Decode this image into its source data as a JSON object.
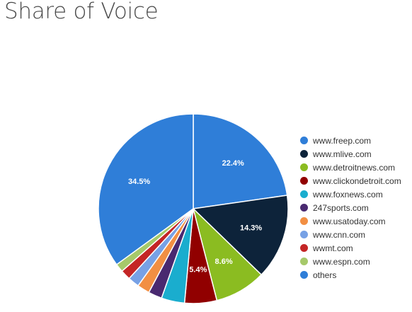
{
  "page": {
    "title": "Share of Voice"
  },
  "chart_data": {
    "type": "pie",
    "title": "Share of Voice",
    "legend_position": "right",
    "categories": [
      "www.freep.com",
      "www.mlive.com",
      "www.detroitnews.com",
      "www.clickondetroit.com",
      "www.foxnews.com",
      "247sports.com",
      "www.usatoday.com",
      "www.cnn.com",
      "wwmt.com",
      "www.espn.com",
      "others"
    ],
    "values": [
      22.4,
      14.3,
      8.6,
      5.4,
      3.9,
      2.3,
      2.1,
      1.9,
      1.7,
      1.4,
      34.5
    ],
    "colors": [
      "#2f7ed8",
      "#0d233a",
      "#8bbc21",
      "#910000",
      "#1aadce",
      "#492970",
      "#f28f43",
      "#77a1e5",
      "#c42525",
      "#a6c96a",
      "#2f7ed8"
    ],
    "data_labels": [
      "22.4%",
      "14.3%",
      "8.6%",
      "5.4%",
      "",
      "",
      "",
      "",
      "",
      "",
      "34.5%"
    ]
  }
}
